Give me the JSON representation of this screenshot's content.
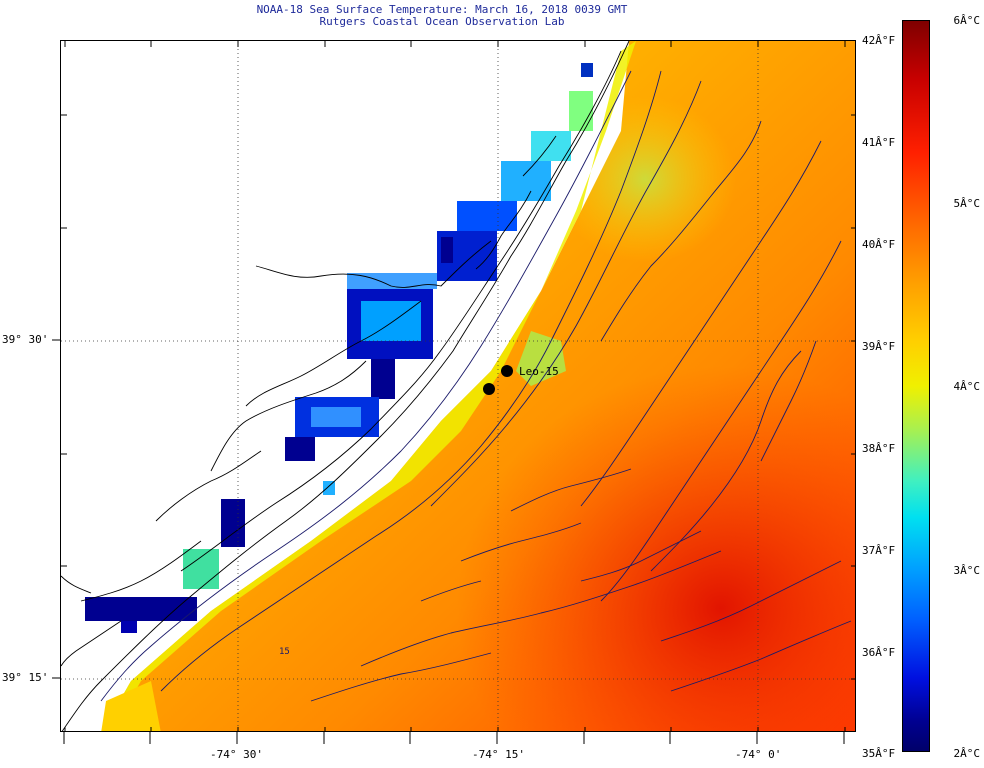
{
  "title": {
    "line1": "NOAA-18 Sea Surface Temperature:  March 16, 2018 0039 GMT",
    "line2": "Rutgers Coastal Ocean Observation Lab"
  },
  "map": {
    "station_label": "Leo-15",
    "contour_label": "15",
    "lat_labels": [
      "39° 30'",
      "39° 15'"
    ],
    "lon_labels": [
      "-74° 30'",
      "-74° 15'",
      "-74° 0'"
    ]
  },
  "colorbar": {
    "fahrenheit_labels": [
      "42Â°F",
      "41Â°F",
      "40Â°F",
      "39Â°F",
      "38Â°F",
      "37Â°F",
      "36Â°F",
      "35Â°F"
    ],
    "celsius_labels": [
      "6Â°C",
      "5Â°C",
      "4Â°C",
      "3Â°C",
      "2Â°C"
    ],
    "colors": {
      "max": "#7f0000",
      "warm": "#ff2000",
      "mid": "#f0f000",
      "cool": "#00e0f0",
      "min": "#00006a"
    }
  }
}
